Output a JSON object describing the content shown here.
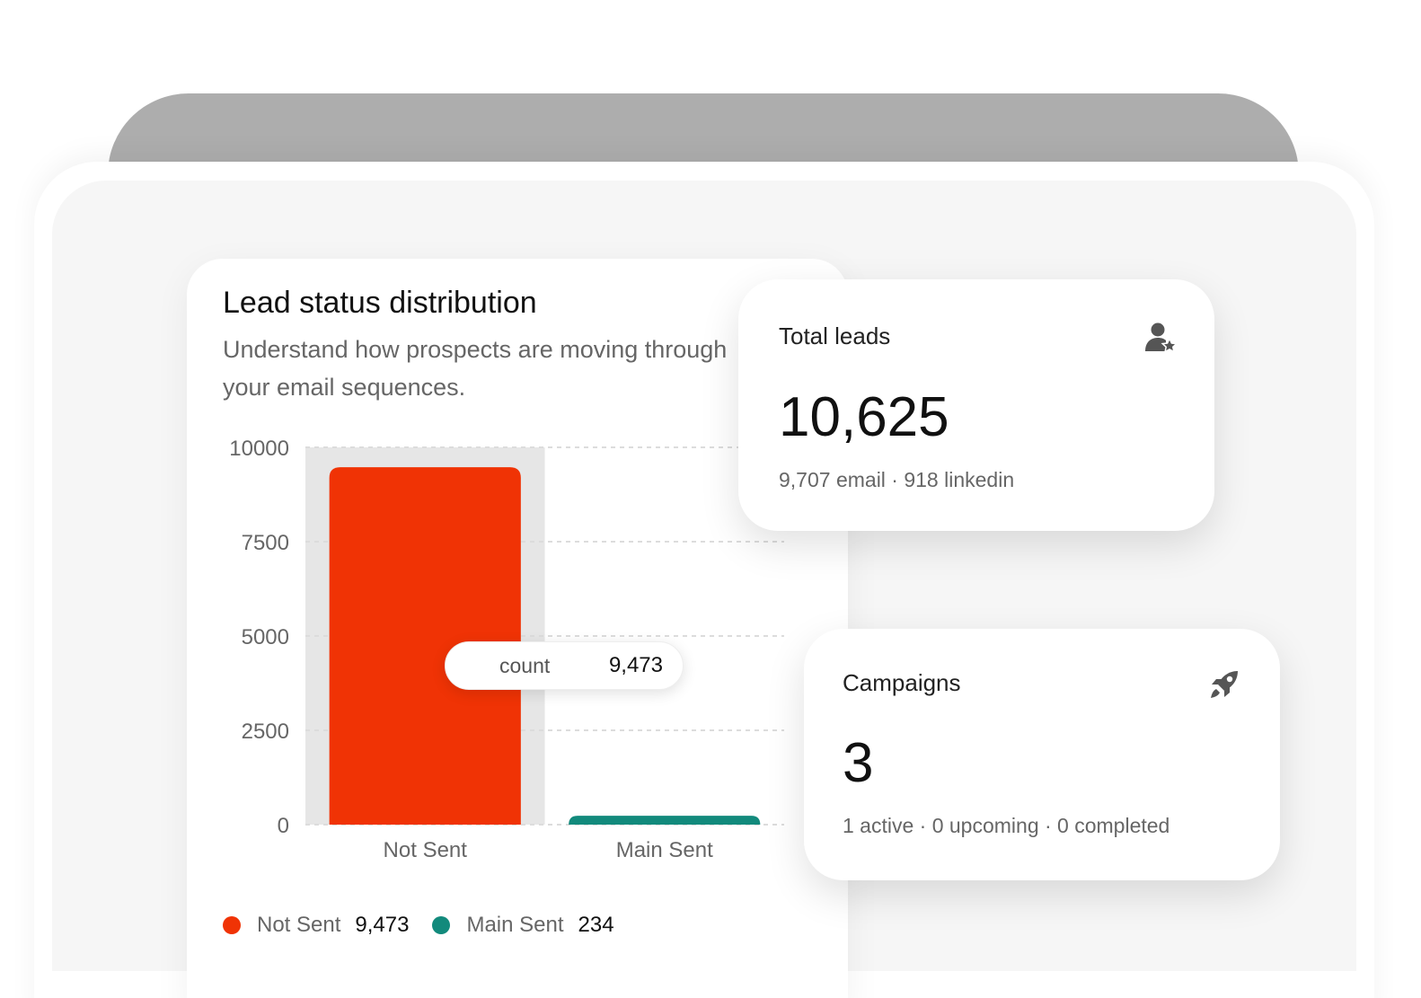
{
  "chart_card": {
    "title": "Lead status distribution",
    "subtitle": "Understand how prospects are moving through your email sequences."
  },
  "tooltip": {
    "label": "count",
    "value": "9,473"
  },
  "legend": [
    {
      "label": "Not Sent",
      "value": "9,473",
      "color": "#f03305"
    },
    {
      "label": "Main Sent",
      "value": "234",
      "color": "#128a7c"
    }
  ],
  "chart_data": {
    "type": "bar",
    "categories": [
      "Not Sent",
      "Main Sent"
    ],
    "values": [
      9473,
      234
    ],
    "colors": [
      "#f03305",
      "#128a7c"
    ],
    "ylim": [
      0,
      10000
    ],
    "yticks": [
      0,
      2500,
      5000,
      7500,
      10000
    ],
    "grid": true,
    "highlighted_category": "Not Sent"
  },
  "total_leads": {
    "label": "Total leads",
    "value": "10,625",
    "sub": "9,707 email · 918 linkedin",
    "icon": "user-star-icon"
  },
  "campaigns": {
    "label": "Campaigns",
    "value": "3",
    "sub": "1 active · 0 upcoming · 0 completed",
    "icon": "rocket-icon"
  }
}
